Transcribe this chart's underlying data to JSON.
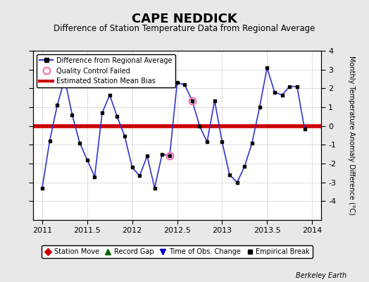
{
  "title": "CAPE NEDDICK",
  "subtitle": "Difference of Station Temperature Data from Regional Average",
  "ylabel_right": "Monthly Temperature Anomaly Difference (°C)",
  "bias_value": 0.0,
  "xlim": [
    2010.9,
    2014.1
  ],
  "ylim": [
    -5,
    4
  ],
  "yticks": [
    -4,
    -3,
    -2,
    -1,
    0,
    1,
    2,
    3,
    4
  ],
  "xticks": [
    2011,
    2011.5,
    2012,
    2012.5,
    2013,
    2013.5,
    2014
  ],
  "xtick_labels": [
    "2011",
    "2011.5",
    "2012",
    "2012.5",
    "2013",
    "2013.5",
    "2014"
  ],
  "bg_color": "#e8e8e8",
  "plot_bg_color": "#ffffff",
  "line_color": "#3333cc",
  "line_width": 1.2,
  "marker_color": "#000000",
  "marker_size": 3.5,
  "bias_color": "#cc0000",
  "bias_linewidth": 4,
  "qc_fail_color": "#ff69b4",
  "grid_color": "#d0d0d0",
  "watermark": "Berkeley Earth",
  "data_x": [
    2011.0,
    2011.083,
    2011.167,
    2011.25,
    2011.333,
    2011.417,
    2011.5,
    2011.583,
    2011.667,
    2011.75,
    2011.833,
    2011.917,
    2012.0,
    2012.083,
    2012.167,
    2012.25,
    2012.333,
    2012.417,
    2012.5,
    2012.583,
    2012.667,
    2012.75,
    2012.833,
    2012.917,
    2013.0,
    2013.083,
    2013.167,
    2013.25,
    2013.333,
    2013.417,
    2013.5,
    2013.583,
    2013.667,
    2013.75,
    2013.833,
    2013.917
  ],
  "data_y": [
    -3.3,
    -0.8,
    1.1,
    2.5,
    0.6,
    -0.9,
    -1.8,
    -2.7,
    0.7,
    1.65,
    0.5,
    -0.55,
    -2.2,
    -2.65,
    -1.6,
    -3.3,
    -1.5,
    -1.6,
    2.3,
    2.2,
    1.35,
    0.0,
    -0.85,
    1.35,
    -0.85,
    -2.6,
    -3.0,
    -2.15,
    -0.9,
    1.0,
    3.1,
    1.8,
    1.65,
    2.1,
    2.1,
    -0.15
  ],
  "qc_fail_points": [
    [
      2012.417,
      -1.6
    ],
    [
      2012.667,
      1.35
    ]
  ],
  "title_fontsize": 13,
  "subtitle_fontsize": 8.5
}
